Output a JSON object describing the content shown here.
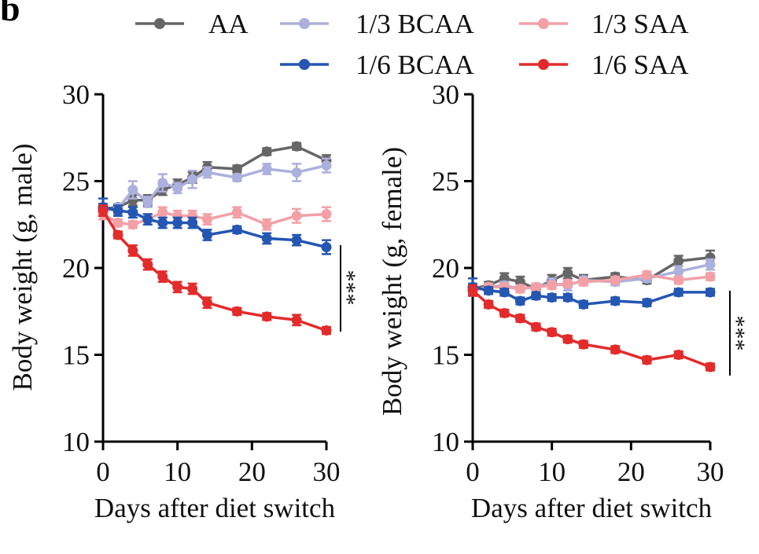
{
  "panel_label": "b",
  "legend": [
    {
      "name": "AA",
      "color": "#666666"
    },
    {
      "name": "1/3 BCAA",
      "color": "#abb0dc"
    },
    {
      "name": "1/3 SAA",
      "color": "#f2a0a6"
    },
    {
      "name": "1/6 BCAA",
      "color": "#2456b2"
    },
    {
      "name": "1/6 SAA",
      "color": "#e32b2b"
    }
  ],
  "chart_data": [
    {
      "type": "line",
      "title": "",
      "xlabel": "Days after diet switch",
      "ylabel": "Body weight (g, male)",
      "xlim": [
        0,
        30
      ],
      "ylim": [
        10,
        30
      ],
      "xticks": [
        0,
        10,
        20,
        30
      ],
      "yticks": [
        10,
        15,
        20,
        25,
        30
      ],
      "significance": "***",
      "series": [
        {
          "name": "AA",
          "color": "#666666",
          "x": [
            0,
            2,
            4,
            6,
            8,
            10,
            12,
            14,
            18,
            22,
            26,
            30
          ],
          "y": [
            23.4,
            23.5,
            23.9,
            23.9,
            24.5,
            24.8,
            25.2,
            25.8,
            25.7,
            26.7,
            27.0,
            26.2
          ],
          "err": [
            0.3,
            0.2,
            0.3,
            0.3,
            0.3,
            0.3,
            0.3,
            0.3,
            0.2,
            0.2,
            0.2,
            0.3
          ]
        },
        {
          "name": "1/3 BCAA",
          "color": "#abb0dc",
          "x": [
            0,
            2,
            4,
            6,
            8,
            10,
            12,
            14,
            18,
            22,
            26,
            30
          ],
          "y": [
            23.3,
            23.4,
            24.5,
            23.8,
            24.9,
            24.6,
            25.1,
            25.5,
            25.2,
            25.7,
            25.5,
            25.9
          ],
          "err": [
            0.3,
            0.3,
            0.5,
            0.3,
            0.5,
            0.3,
            0.5,
            0.3,
            0.2,
            0.3,
            0.5,
            0.4
          ]
        },
        {
          "name": "1/3 SAA",
          "color": "#f2a0a6",
          "x": [
            0,
            2,
            4,
            6,
            8,
            10,
            12,
            14,
            18,
            22,
            26,
            30
          ],
          "y": [
            23.1,
            22.6,
            22.5,
            22.8,
            23.2,
            23.0,
            23.0,
            22.8,
            23.2,
            22.5,
            23.0,
            23.1
          ],
          "err": [
            0.3,
            0.2,
            0.2,
            0.3,
            0.3,
            0.3,
            0.3,
            0.3,
            0.3,
            0.3,
            0.4,
            0.4
          ]
        },
        {
          "name": "1/6 BCAA",
          "color": "#2456b2",
          "x": [
            0,
            2,
            4,
            6,
            8,
            10,
            12,
            14,
            18,
            22,
            26,
            30
          ],
          "y": [
            23.5,
            23.3,
            23.2,
            22.8,
            22.6,
            22.6,
            22.6,
            21.9,
            22.2,
            21.7,
            21.6,
            21.2
          ],
          "err": [
            0.5,
            0.3,
            0.3,
            0.3,
            0.3,
            0.3,
            0.3,
            0.3,
            0.2,
            0.3,
            0.3,
            0.4
          ]
        },
        {
          "name": "1/6 SAA",
          "color": "#e32b2b",
          "x": [
            0,
            2,
            4,
            6,
            8,
            10,
            12,
            14,
            18,
            22,
            26,
            30
          ],
          "y": [
            23.3,
            21.9,
            21.0,
            20.2,
            19.5,
            18.9,
            18.8,
            18.0,
            17.5,
            17.2,
            17.0,
            16.4
          ],
          "err": [
            0.3,
            0.2,
            0.3,
            0.3,
            0.3,
            0.3,
            0.3,
            0.3,
            0.2,
            0.2,
            0.3,
            0.2
          ]
        }
      ]
    },
    {
      "type": "line",
      "title": "",
      "xlabel": "Days after diet switch",
      "ylabel": "Body weight (g, female)",
      "xlim": [
        0,
        30
      ],
      "ylim": [
        10,
        30
      ],
      "xticks": [
        0,
        10,
        20,
        30
      ],
      "yticks": [
        10,
        15,
        20,
        25,
        30
      ],
      "significance": "***",
      "series": [
        {
          "name": "AA",
          "color": "#666666",
          "x": [
            0,
            2,
            4,
            6,
            8,
            10,
            12,
            14,
            18,
            22,
            26,
            30
          ],
          "y": [
            18.8,
            19.0,
            19.4,
            19.2,
            18.8,
            19.3,
            19.7,
            19.3,
            19.5,
            19.3,
            20.4,
            20.6
          ],
          "err": [
            0.3,
            0.2,
            0.3,
            0.3,
            0.3,
            0.3,
            0.3,
            0.3,
            0.2,
            0.2,
            0.3,
            0.4
          ]
        },
        {
          "name": "1/3 BCAA",
          "color": "#abb0dc",
          "x": [
            0,
            2,
            4,
            6,
            8,
            10,
            12,
            14,
            18,
            22,
            26,
            30
          ],
          "y": [
            18.7,
            18.9,
            19.0,
            18.8,
            18.9,
            19.1,
            19.0,
            19.3,
            19.2,
            19.4,
            19.8,
            20.2
          ],
          "err": [
            0.3,
            0.2,
            0.2,
            0.2,
            0.2,
            0.3,
            0.3,
            0.2,
            0.2,
            0.2,
            0.3,
            0.3
          ]
        },
        {
          "name": "1/3 SAA",
          "color": "#f2a0a6",
          "x": [
            0,
            2,
            4,
            6,
            8,
            10,
            12,
            14,
            18,
            22,
            26,
            30
          ],
          "y": [
            18.7,
            18.9,
            18.9,
            18.8,
            18.9,
            19.0,
            19.1,
            19.2,
            19.3,
            19.6,
            19.3,
            19.5
          ],
          "err": [
            0.3,
            0.2,
            0.2,
            0.2,
            0.2,
            0.2,
            0.2,
            0.2,
            0.2,
            0.2,
            0.2,
            0.2
          ]
        },
        {
          "name": "1/6 BCAA",
          "color": "#2456b2",
          "x": [
            0,
            2,
            4,
            6,
            8,
            10,
            12,
            14,
            18,
            22,
            26,
            30
          ],
          "y": [
            18.9,
            18.7,
            18.6,
            18.1,
            18.4,
            18.3,
            18.3,
            17.9,
            18.1,
            18.0,
            18.6,
            18.6
          ],
          "err": [
            0.5,
            0.2,
            0.2,
            0.2,
            0.2,
            0.2,
            0.2,
            0.2,
            0.2,
            0.2,
            0.2,
            0.2
          ]
        },
        {
          "name": "1/6 SAA",
          "color": "#e32b2b",
          "x": [
            0,
            2,
            4,
            6,
            8,
            10,
            12,
            14,
            18,
            22,
            26,
            30
          ],
          "y": [
            18.7,
            17.9,
            17.4,
            17.1,
            16.6,
            16.3,
            15.9,
            15.6,
            15.3,
            14.7,
            15.0,
            14.3
          ],
          "err": [
            0.3,
            0.2,
            0.2,
            0.2,
            0.2,
            0.2,
            0.2,
            0.2,
            0.2,
            0.2,
            0.2,
            0.2
          ]
        }
      ]
    }
  ]
}
